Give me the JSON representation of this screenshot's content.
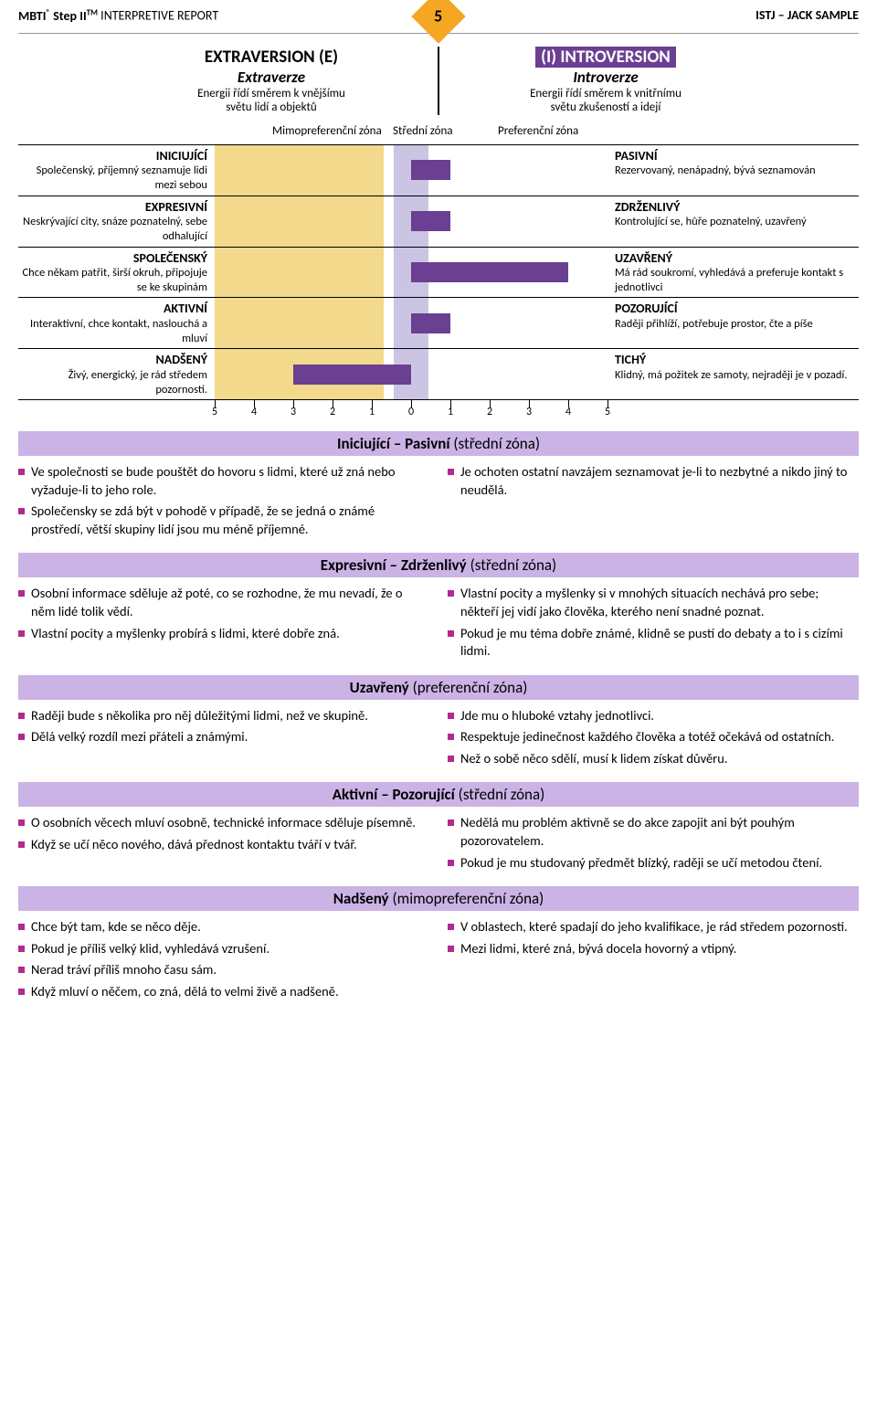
{
  "header": {
    "brand_bold": "MBTI",
    "brand_mid": " Step II",
    "brand_tm": "TM",
    "brand_tail": " INTERPRETIVE REPORT",
    "page": "5",
    "right": "ISTJ – JACK SAMPLE",
    "reg": "®"
  },
  "dichotomy": {
    "left": {
      "code": "EXTRAVERSION (E)",
      "name": "Extraverze",
      "desc1": "Energii řídí směrem k vnějšímu",
      "desc2": "světu lidí a objektů"
    },
    "right": {
      "code": "(I) INTROVERSION",
      "name": "Introverze",
      "desc1": "Energii řídí směrem k vnitřnímu",
      "desc2": "světu zkušeností a idejí"
    }
  },
  "zones": {
    "mimo": "Mimopreferenční zóna",
    "stredni": "Střední zóna",
    "pref": "Preferenční zóna"
  },
  "facets": [
    {
      "left_t": "INICIUJÍCÍ",
      "left_d": "Společenský, příjemný seznamuje lidi mezi sebou",
      "right_t": "PASIVNÍ",
      "right_d": "Rezervovaný, nenápadný, bývá seznamován",
      "side": "right",
      "value": 1,
      "color_bar": "#6b3f91"
    },
    {
      "left_t": "EXPRESIVNÍ",
      "left_d": "Neskrývající city, snáze poznatelný, sebe odhalující",
      "right_t": "ZDRŽENLIVÝ",
      "right_d": "Kontrolující se, hůře poznatelný, uzavřený",
      "side": "right",
      "value": 1,
      "color_bar": "#6b3f91"
    },
    {
      "left_t": "SPOLEČENSKÝ",
      "left_d": "Chce někam patřit, širší okruh, připojuje se ke skupinám",
      "right_t": "UZAVŘENÝ",
      "right_d": "Má rád soukromí, vyhledává a preferuje kontakt s jednotlivci",
      "side": "right",
      "value": 4,
      "color_bar": "#6b3f91"
    },
    {
      "left_t": "AKTIVNÍ",
      "left_d": "Interaktivní, chce kontakt, naslouchá a mluví",
      "right_t": "POZORUJÍCÍ",
      "right_d": "Raději přihlíží, potřebuje prostor, čte a píše",
      "side": "right",
      "value": 1,
      "color_bar": "#6b3f91"
    },
    {
      "left_t": "NADŠENÝ",
      "left_d": "Živý, energický, je rád středem pozornosti.",
      "right_t": "TICHÝ",
      "right_d": "Klidný, má požitek ze samoty, nejraději je v pozadí.",
      "side": "left",
      "value": 3,
      "color_bar": "#6b3f91"
    }
  ],
  "ticks": [
    "5",
    "4",
    "3",
    "2",
    "1",
    "0",
    "1",
    "2",
    "3",
    "4",
    "5"
  ],
  "sections": [
    {
      "title": "Iniciující – Pasivní",
      "zone": "(střední zóna)",
      "left": [
        "Ve společnosti se bude pouštět do hovoru s lidmi, které už zná nebo vyžaduje-li to jeho role.",
        "Společensky se zdá být v pohodě v případě, že se jedná o známé prostředí, větší skupiny lidí jsou mu méně příjemné."
      ],
      "right": [
        "Je ochoten ostatní navzájem seznamovat je-li to nezbytné a nikdo jiný to neudělá."
      ]
    },
    {
      "title": "Expresivní – Zdrženlivý",
      "zone": "(střední zóna)",
      "left": [
        "Osobní informace sděluje až poté, co se rozhodne, že mu nevadí, že o něm lidé tolik vědí.",
        "Vlastní pocity a myšlenky probírá s lidmi, které dobře zná."
      ],
      "right": [
        "Vlastní pocity a myšlenky si v mnohých situacích nechává pro sebe; někteří jej vidí jako člověka, kterého není snadné poznat.",
        "Pokud je mu téma dobře známé, klidně se pustí do debaty a to i s cizími lidmi."
      ]
    },
    {
      "title": "Uzavřený",
      "zone": "(preferenční zóna)",
      "left": [
        "Raději bude s několika pro něj důležitými lidmi, než ve skupině.",
        "Dělá velký rozdíl mezi přáteli a známými."
      ],
      "right": [
        "Jde mu o hluboké vztahy jednotlivci.",
        "Respektuje jedinečnost každého člověka a totéž očekává od ostatních.",
        "Než o sobě něco sdělí, musí k lidem získat důvěru."
      ]
    },
    {
      "title": "Aktivní – Pozorující",
      "zone": "(střední zóna)",
      "left": [
        "O osobních věcech mluví osobně, technické informace sděluje písemně.",
        "Když se učí něco nového, dává přednost kontaktu tváří v tvář."
      ],
      "right": [
        "Nedělá mu problém aktivně se do akce zapojit ani být pouhým pozorovatelem.",
        "Pokud je mu studovaný předmět blízký, raději se učí metodou čtení."
      ]
    },
    {
      "title": "Nadšený",
      "zone": "(mimopreferenční zóna)",
      "left": [
        "Chce být tam, kde se něco děje.",
        "Pokud je příliš velký klid, vyhledává vzrušení.",
        "Nerad tráví příliš mnoho času sám.",
        "Když mluví o něčem, co zná, dělá to velmi živě a nadšeně."
      ],
      "right": [
        "V oblastech, které spadají do jeho kvalifikace, je rád středem pozornosti.",
        "Mezi lidmi, které zná, bývá docela hovorný a vtipný."
      ]
    }
  ],
  "colors": {
    "purple": "#6b3f91",
    "lavender": "#cbb3e6",
    "midzone": "#cbc5e3",
    "yellow": "#f2d98b",
    "bullet": "#b02a8f",
    "orange": "#f5a623"
  }
}
